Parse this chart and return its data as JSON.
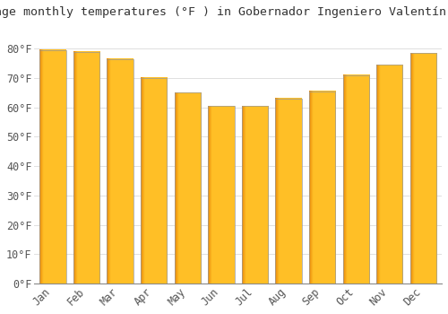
{
  "title": "Average monthly temperatures (°F ) in Gobernador Ingeniero Valentín Virasoro",
  "months": [
    "Jan",
    "Feb",
    "Mar",
    "Apr",
    "May",
    "Jun",
    "Jul",
    "Aug",
    "Sep",
    "Oct",
    "Nov",
    "Dec"
  ],
  "values": [
    79.5,
    79.0,
    76.5,
    70.0,
    65.0,
    60.5,
    60.5,
    63.0,
    65.5,
    71.0,
    74.5,
    78.5
  ],
  "bar_color_main": "#FFAA00",
  "bar_color_light": "#FFD060",
  "bar_color_dark": "#E88800",
  "bar_edge_color": "#999999",
  "ylim": [
    0,
    88
  ],
  "yticks": [
    0,
    10,
    20,
    30,
    40,
    50,
    60,
    70,
    80
  ],
  "ytick_labels": [
    "0°F",
    "10°F",
    "20°F",
    "30°F",
    "40°F",
    "50°F",
    "60°F",
    "70°F",
    "80°F"
  ],
  "grid_color": "#e0e0e0",
  "bg_color": "#ffffff",
  "title_fontsize": 9.5,
  "tick_fontsize": 8.5,
  "font_family": "monospace"
}
